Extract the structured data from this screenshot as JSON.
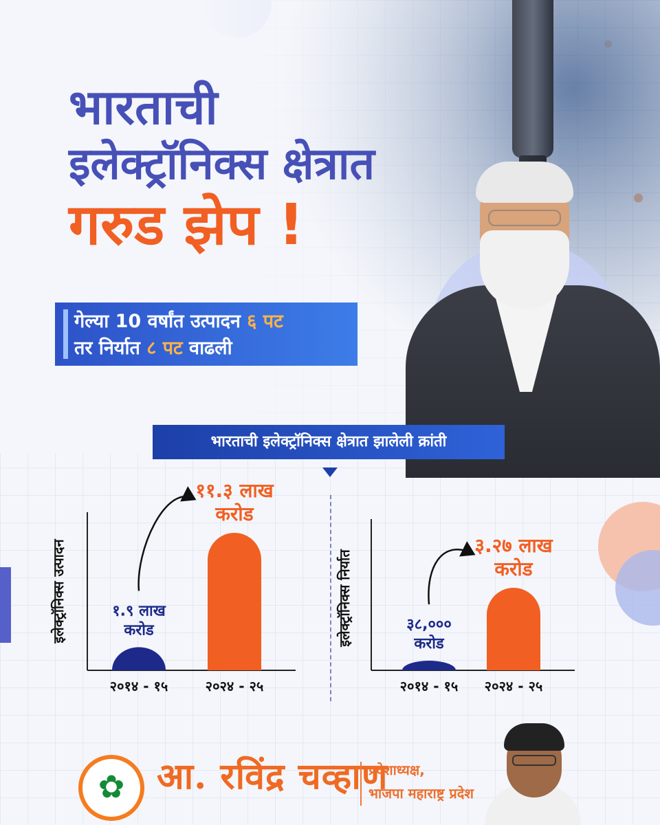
{
  "headline": {
    "line1": "भारताची",
    "line2": "इलेक्ट्रॉनिक्स क्षेत्रात",
    "line3": "गरुड झेप !"
  },
  "sub_banner": {
    "line1_a": "गेल्या 10 वर्षांत उत्पादन ",
    "line1_b": "६ पट",
    "line2_a": "तर निर्यात ",
    "line2_b": "८ पट",
    "line2_c": " वाढली"
  },
  "ribbon": {
    "label": "भारताची इलेक्ट्रॉनिक्स क्षेत्रात झालेली क्रांती"
  },
  "colors": {
    "blue": "#4750b7",
    "navy": "#1d2a8a",
    "orange": "#f15f22"
  },
  "chart_data": [
    {
      "type": "bar",
      "ylabel": "इलेक्ट्रॉनिक्स उत्पादन",
      "categories": [
        "२०१४ - १५",
        "२०२४ - २५"
      ],
      "values": [
        1.9,
        11.3
      ],
      "value_labels": [
        [
          "१.९ लाख",
          "करोड"
        ],
        [
          "११.३ लाख",
          "करोड"
        ]
      ],
      "unit": "लाख करोड",
      "colors": [
        "#1d2a8a",
        "#f15f22"
      ]
    },
    {
      "type": "bar",
      "ylabel": "इलेक्ट्रॉनिक्स निर्यात",
      "categories": [
        "२०१४ - १५",
        "२०२४ - २५"
      ],
      "values": [
        0.38,
        3.27
      ],
      "value_labels": [
        [
          "३८,०००",
          "करोड"
        ],
        [
          "३.२७ लाख",
          "करोड"
        ]
      ],
      "unit": "लाख करोड",
      "colors": [
        "#1d2a8a",
        "#f15f22"
      ]
    }
  ],
  "footer": {
    "name": "आ. रविंद्र चव्हाण",
    "role_line1": "प्रदेशाध्यक्ष,",
    "role_line2": "भाजपा महाराष्ट्र प्रदेश",
    "logo_icon": "lotus-icon",
    "logo_glyph": "✿"
  }
}
